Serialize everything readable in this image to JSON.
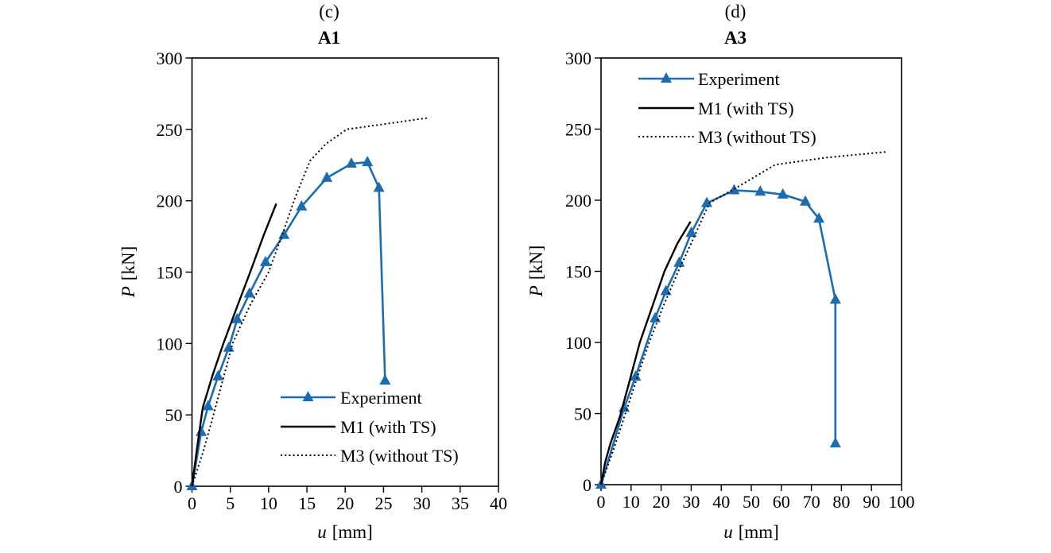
{
  "figure": {
    "background": "#ffffff",
    "frame_color": "#000000",
    "text_color": "#000000"
  },
  "colors": {
    "experiment_blue": "#1b6cb1",
    "model_black": "#000000"
  },
  "chart_data": [
    {
      "type": "line",
      "panel_label": "(c)",
      "title": "A1",
      "xlabel_var": "u",
      "xlabel_unit": "[mm]",
      "ylabel_var": "P",
      "ylabel_unit": "[kN]",
      "xlim": [
        0,
        40
      ],
      "ylim": [
        0,
        300
      ],
      "xticks": [
        0,
        5,
        10,
        15,
        20,
        25,
        30,
        35,
        40
      ],
      "yticks": [
        0,
        50,
        100,
        150,
        200,
        250,
        300
      ],
      "grid": false,
      "legend_position": "inside lower right",
      "series": [
        {
          "name": "Experiment",
          "color": "#1b6cb1",
          "style": "solid",
          "width": 2.6,
          "marker": "triangle",
          "points": [
            [
              0,
              0
            ],
            [
              1.2,
              38
            ],
            [
              2.1,
              56
            ],
            [
              3.4,
              77
            ],
            [
              4.8,
              97
            ],
            [
              5.9,
              117
            ],
            [
              7.5,
              135
            ],
            [
              9.6,
              157
            ],
            [
              12,
              176
            ],
            [
              14.3,
              196
            ],
            [
              17.6,
              216
            ],
            [
              20.8,
              226
            ],
            [
              22.9,
              227
            ],
            [
              24.4,
              209
            ],
            [
              25.2,
              74
            ]
          ]
        },
        {
          "name": "M1 (with TS)",
          "color": "#000000",
          "style": "solid",
          "width": 2.4,
          "marker": null,
          "points": [
            [
              0,
              0
            ],
            [
              0.7,
              28
            ],
            [
              1.4,
              55
            ],
            [
              2.7,
              78
            ],
            [
              4.1,
              100
            ],
            [
              5.9,
              126
            ],
            [
              7.6,
              150
            ],
            [
              9.3,
              175
            ],
            [
              11,
              198
            ]
          ]
        },
        {
          "name": "M3 (without TS)",
          "color": "#000000",
          "style": "dotted",
          "width": 2,
          "marker": null,
          "points": [
            [
              0,
              0
            ],
            [
              1.5,
              25
            ],
            [
              2.8,
              50
            ],
            [
              5.3,
              100
            ],
            [
              7.6,
              127
            ],
            [
              10,
              150
            ],
            [
              11.9,
              178
            ],
            [
              13.3,
              200
            ],
            [
              15.4,
              228
            ],
            [
              17.5,
              240
            ],
            [
              20.2,
              250
            ],
            [
              25.5,
              254
            ],
            [
              30.7,
              258
            ]
          ]
        }
      ]
    },
    {
      "type": "line",
      "panel_label": "(d)",
      "title": "A3",
      "xlabel_var": "u",
      "xlabel_unit": "[mm]",
      "ylabel_var": "P",
      "ylabel_unit": "[kN]",
      "xlim": [
        0,
        100
      ],
      "ylim": [
        0,
        300
      ],
      "xticks": [
        0,
        10,
        20,
        30,
        40,
        50,
        60,
        70,
        80,
        90,
        100
      ],
      "yticks": [
        0,
        50,
        100,
        150,
        200,
        250,
        300
      ],
      "grid": false,
      "legend_position": "inside upper left",
      "series": [
        {
          "name": "Experiment",
          "color": "#1b6cb1",
          "style": "solid",
          "width": 2.6,
          "marker": "triangle",
          "points": [
            [
              0,
              0
            ],
            [
              7.7,
              54
            ],
            [
              11.5,
              76
            ],
            [
              18,
              117
            ],
            [
              21.6,
              136
            ],
            [
              26,
              156
            ],
            [
              30,
              177
            ],
            [
              35.2,
              198
            ],
            [
              44.3,
              207
            ],
            [
              53,
              206
            ],
            [
              60.5,
              204
            ],
            [
              68,
              199
            ],
            [
              72.5,
              187
            ],
            [
              78,
              130
            ],
            [
              78,
              29
            ]
          ]
        },
        {
          "name": "M1 (with TS)",
          "color": "#000000",
          "style": "solid",
          "width": 2.4,
          "marker": null,
          "points": [
            [
              0,
              0
            ],
            [
              1.3,
              15
            ],
            [
              3,
              28
            ],
            [
              6.3,
              48
            ],
            [
              9.4,
              72
            ],
            [
              12.9,
              100
            ],
            [
              17,
              125
            ],
            [
              21.1,
              150
            ],
            [
              25.5,
              170
            ],
            [
              29.8,
              185
            ]
          ]
        },
        {
          "name": "M3 (without TS)",
          "color": "#000000",
          "style": "dotted",
          "width": 2,
          "marker": null,
          "points": [
            [
              0,
              0
            ],
            [
              2,
              12
            ],
            [
              4.2,
              25
            ],
            [
              7.8,
              48
            ],
            [
              11.5,
              72
            ],
            [
              16,
              100
            ],
            [
              21,
              127
            ],
            [
              25.7,
              150
            ],
            [
              30.5,
              172
            ],
            [
              36,
              198
            ],
            [
              46,
              210
            ],
            [
              58,
              225
            ],
            [
              75,
              230
            ],
            [
              95,
              234
            ]
          ]
        }
      ]
    }
  ]
}
